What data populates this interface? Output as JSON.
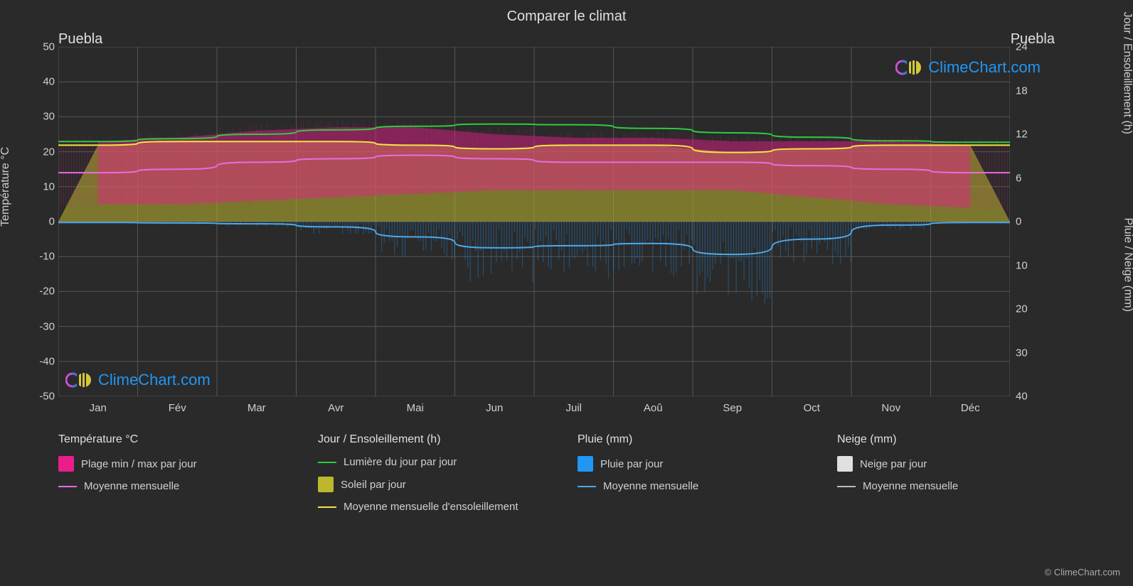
{
  "title": "Comparer le climat",
  "location_left": "Puebla",
  "location_right": "Puebla",
  "axis_left_label": "Température °C",
  "axis_right_top_label": "Jour / Ensoleillement (h)",
  "axis_right_bottom_label": "Pluie / Neige (mm)",
  "copyright": "© ClimeChart.com",
  "watermark_text": "ClimeChart.com",
  "watermark_color": "#2196f3",
  "chart": {
    "type": "climate-composite",
    "background_color": "#2a2a2a",
    "grid_color": "#555555",
    "plot_bg": "#2a2a2a",
    "font_color": "#d0d0d0",
    "y_left": {
      "min": -50,
      "max": 50,
      "ticks": [
        -50,
        -40,
        -30,
        -20,
        -10,
        0,
        10,
        20,
        30,
        40,
        50
      ]
    },
    "y_right_top": {
      "min": 0,
      "max": 24,
      "ticks": [
        0,
        6,
        12,
        18,
        24
      ]
    },
    "y_right_bottom": {
      "min": 0,
      "max": 40,
      "ticks": [
        0,
        10,
        20,
        30,
        40
      ]
    },
    "months": [
      "Jan",
      "Fév",
      "Mar",
      "Avr",
      "Mai",
      "Jun",
      "Juil",
      "Aoû",
      "Sep",
      "Oct",
      "Nov",
      "Déc"
    ],
    "series": {
      "temp_range": {
        "label": "Plage min / max par jour",
        "color": "#e91e8c",
        "fill_opacity": 0.45,
        "min": [
          5,
          5,
          6,
          7,
          8,
          9,
          9,
          9,
          9,
          7,
          5,
          4
        ],
        "max": [
          23,
          24,
          26,
          27,
          27,
          25,
          24,
          24,
          23,
          23,
          23,
          22
        ]
      },
      "temp_mean": {
        "label": "Moyenne mensuelle",
        "color": "#e86ddf",
        "line_width": 2,
        "values": [
          14,
          15,
          17,
          18,
          19,
          18,
          17,
          17,
          17,
          16,
          15,
          14
        ]
      },
      "daylight": {
        "label": "Lumière du jour par jour",
        "color": "#2ecc40",
        "line_width": 2,
        "values": [
          11.0,
          11.4,
          12.0,
          12.6,
          13.1,
          13.4,
          13.3,
          12.8,
          12.2,
          11.6,
          11.1,
          10.9
        ]
      },
      "sunshine_fill": {
        "label": "Soleil par jour",
        "color": "#bdb72f",
        "fill_opacity": 0.55,
        "values": [
          10.5,
          11,
          11,
          11,
          10.5,
          10,
          10.5,
          10.5,
          9.5,
          10,
          10.5,
          10.5
        ]
      },
      "sunshine_mean": {
        "label": "Moyenne mensuelle d'ensoleillement",
        "color": "#f4e542",
        "line_width": 2,
        "values": [
          10.5,
          11,
          11,
          11,
          10.5,
          10,
          10.5,
          10.5,
          9.5,
          10,
          10.5,
          10.5
        ]
      },
      "rain_daily": {
        "label": "Pluie par jour",
        "color": "#2196f3",
        "fill_opacity": 0.35
      },
      "rain_mean": {
        "label": "Moyenne mensuelle",
        "color": "#4fa8e8",
        "line_width": 2,
        "values": [
          0.2,
          0.3,
          0.5,
          1.2,
          3.5,
          6.0,
          5.5,
          5.0,
          7.5,
          4.0,
          0.8,
          0.2
        ]
      },
      "snow_daily": {
        "label": "Neige par jour",
        "color": "#e0e0e0"
      },
      "snow_mean": {
        "label": "Moyenne mensuelle",
        "color": "#bbbbbb",
        "line_width": 2,
        "values": [
          0,
          0,
          0,
          0,
          0,
          0,
          0,
          0,
          0,
          0,
          0,
          0
        ]
      }
    }
  },
  "legend": {
    "groups": [
      {
        "title": "Température °C",
        "items": [
          {
            "type": "box",
            "color": "#e91e8c",
            "label": "Plage min / max par jour"
          },
          {
            "type": "line",
            "color": "#e86ddf",
            "label": "Moyenne mensuelle"
          }
        ]
      },
      {
        "title": "Jour / Ensoleillement (h)",
        "items": [
          {
            "type": "line",
            "color": "#2ecc40",
            "label": "Lumière du jour par jour"
          },
          {
            "type": "box",
            "color": "#bdb72f",
            "label": "Soleil par jour"
          },
          {
            "type": "line",
            "color": "#f4e542",
            "label": "Moyenne mensuelle d'ensoleillement"
          }
        ]
      },
      {
        "title": "Pluie (mm)",
        "items": [
          {
            "type": "box",
            "color": "#2196f3",
            "label": "Pluie par jour"
          },
          {
            "type": "line",
            "color": "#4fa8e8",
            "label": "Moyenne mensuelle"
          }
        ]
      },
      {
        "title": "Neige (mm)",
        "items": [
          {
            "type": "box",
            "color": "#e0e0e0",
            "label": "Neige par jour"
          },
          {
            "type": "line",
            "color": "#bbbbbb",
            "label": "Moyenne mensuelle"
          }
        ]
      }
    ]
  }
}
